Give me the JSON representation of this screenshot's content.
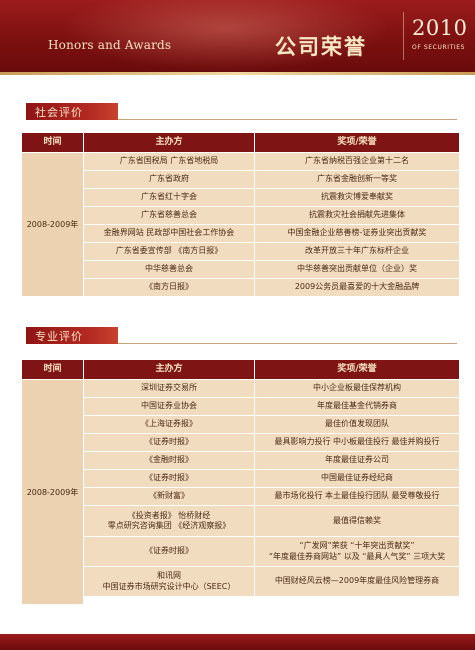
{
  "header": {
    "title_en": "Honors and Awards",
    "title_cn": "公司荣誉",
    "year": "2010",
    "year_sub": "OF SECURITIES"
  },
  "columns": {
    "time": "时间",
    "host": "主办方",
    "award": "奖项/荣誉"
  },
  "social": {
    "section_title": "社会评价",
    "time": "2008-2009年",
    "rows": [
      {
        "host": "广东省国税局 广东省地税局",
        "award": "广东省纳税百强企业第十二名"
      },
      {
        "host": "广东省政府",
        "award": "广东省金融创新一等奖"
      },
      {
        "host": "广东省红十字会",
        "award": "抗震救灾博爱奉献奖"
      },
      {
        "host": "广东省慈善总会",
        "award": "抗震救灾社会捐献先进集体"
      },
      {
        "host": "金融界网站  民政部中国社会工作协会",
        "award": "中国金融企业慈善榜-证券业突出贡献奖"
      },
      {
        "host": "广东省委宣传部    《南方日报》",
        "award": "改革开放三十年广东标杆企业"
      },
      {
        "host": "中华慈善总会",
        "award": "中华慈善突出贡献单位（企业）奖"
      },
      {
        "host": "《南方日报》",
        "award": "2009公务员最喜爱的十大金融品牌"
      }
    ]
  },
  "professional": {
    "section_title": "专业评价",
    "time": "2008-2009年",
    "rows": [
      {
        "host": "深圳证券交易所",
        "award": "中小企业板最佳保荐机构"
      },
      {
        "host": "中国证券业协会",
        "award": "年度最佳基金代销券商"
      },
      {
        "host": "《上海证券报》",
        "award": "最佳价值发现团队"
      },
      {
        "host": "《证券时报》",
        "award": "最具影响力投行    中小板最佳投行   最佳并购投行"
      },
      {
        "host": "《金融时报》",
        "award": "年度最佳证券公司"
      },
      {
        "host": "《证券时报》",
        "award": "中国最佳证券经纪商"
      },
      {
        "host": "《新财富》",
        "award": "最市场化投行    本土最佳投行团队    最受尊敬投行"
      },
      {
        "host": "《投资者报》     怡桥财经\n零点研究咨询集团   《经济观察报》",
        "award": "最值得信赖奖"
      },
      {
        "host": "《证券时报》",
        "award": "“广发网”荣获 “十年突出贡献奖”\n“年度最佳券商网站” 以及 “最具人气奖” 三项大奖"
      },
      {
        "host": "和讯网\n中国证券市场研究设计中心（SEEC）",
        "award": "中国财经风云榜—2009年度最佳风险管理券商"
      }
    ]
  }
}
